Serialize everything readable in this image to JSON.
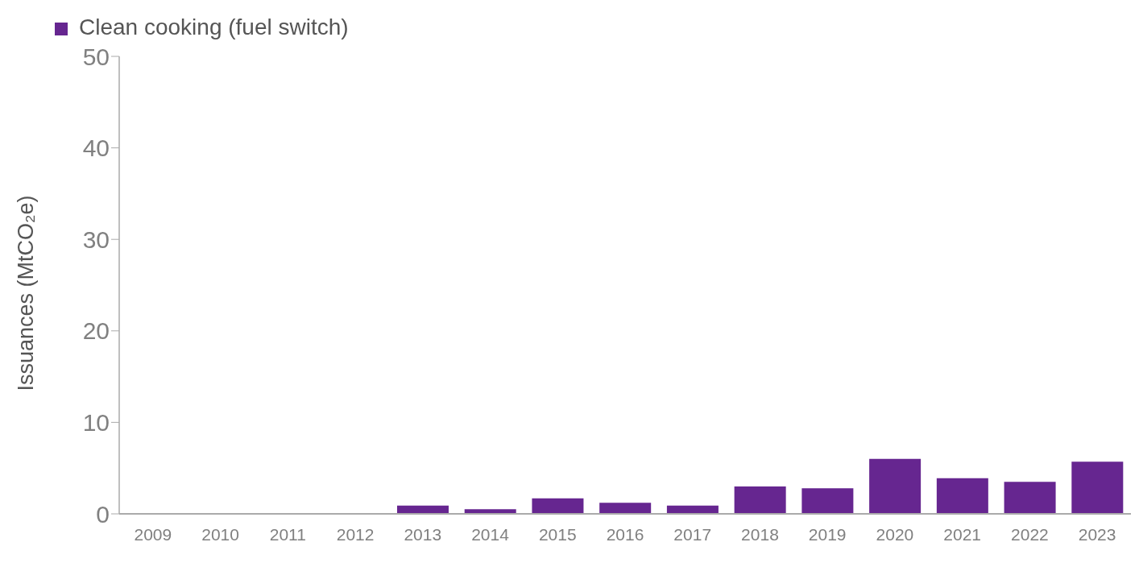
{
  "chart_data": {
    "type": "bar",
    "ylabel": "Issuances (MtCO₂e)",
    "categories": [
      "2009",
      "2010",
      "2011",
      "2012",
      "2013",
      "2014",
      "2015",
      "2016",
      "2017",
      "2018",
      "2019",
      "2020",
      "2021",
      "2022",
      "2023"
    ],
    "series": [
      {
        "name": "Clean cooking (fuel switch)",
        "color": "#662690",
        "values": [
          0,
          0,
          0,
          0,
          0.9,
          0.5,
          1.7,
          1.2,
          0.9,
          3.0,
          2.8,
          6.0,
          3.9,
          3.5,
          5.7
        ]
      }
    ],
    "ylim": [
      0,
      50
    ],
    "yticks": [
      0,
      10,
      20,
      30,
      40,
      50
    ],
    "grid": false,
    "legend": "top left"
  }
}
